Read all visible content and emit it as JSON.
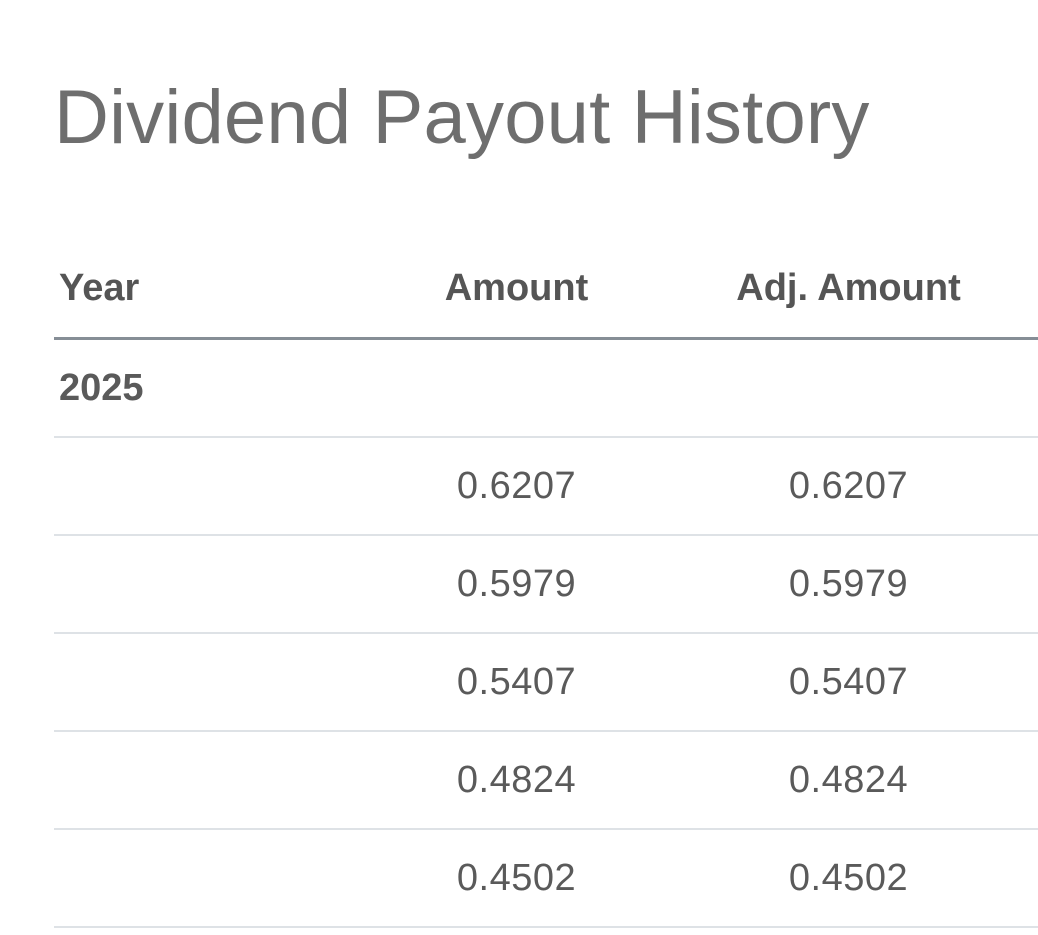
{
  "page": {
    "title": "Dividend Payout History"
  },
  "table": {
    "columns": [
      "Year",
      "Amount",
      "Adj. Amount"
    ],
    "year_group": "2025",
    "rows": [
      {
        "amount": "0.6207",
        "adj_amount": "0.6207"
      },
      {
        "amount": "0.5979",
        "adj_amount": "0.5979"
      },
      {
        "amount": "0.5407",
        "adj_amount": "0.5407"
      },
      {
        "amount": "0.4824",
        "adj_amount": "0.4824"
      },
      {
        "amount": "0.4502",
        "adj_amount": "0.4502"
      }
    ]
  },
  "colors": {
    "title": "#6e6e6e",
    "text": "#555555",
    "header_rule": "#868e96",
    "row_rule": "#dee2e6"
  }
}
